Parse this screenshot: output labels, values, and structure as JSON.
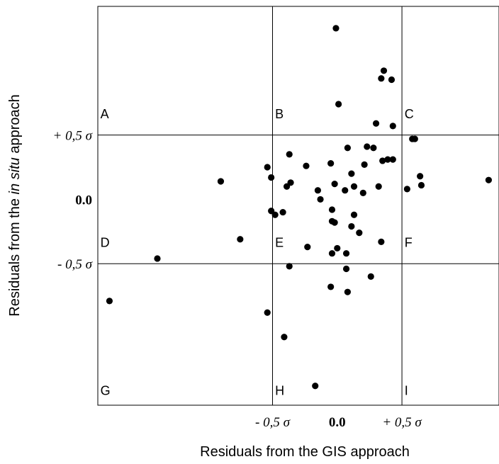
{
  "chart_data": {
    "type": "scatter",
    "xlabel": "Residuals from the GIS approach",
    "ylabel": {
      "prefix": "Residuals from the ",
      "italic": "in situ",
      "suffix": " approach"
    },
    "xlim": [
      -1.85,
      1.25
    ],
    "ylim": [
      -1.6,
      1.5
    ],
    "x_ticks": [
      {
        "value": -0.5,
        "label": "- 0,5 σ",
        "style": "italic"
      },
      {
        "value": 0.0,
        "label": "0.0",
        "style": "bold"
      },
      {
        "value": 0.5,
        "label": "+ 0,5 σ",
        "style": "italic"
      }
    ],
    "y_ticks": [
      {
        "value": 0.5,
        "label": "+ 0,5 σ",
        "style": "italic"
      },
      {
        "value": 0.0,
        "label": "0.0",
        "style": "bold"
      },
      {
        "value": -0.5,
        "label": "- 0,5 σ",
        "style": "italic"
      }
    ],
    "reference_lines": {
      "x": [
        -0.5,
        0.5
      ],
      "y": [
        -0.5,
        0.5
      ]
    },
    "regions": [
      {
        "label": "A",
        "x": -1.83,
        "y": 0.63
      },
      {
        "label": "B",
        "x": -0.48,
        "y": 0.63
      },
      {
        "label": "C",
        "x": 0.52,
        "y": 0.63
      },
      {
        "label": "D",
        "x": -1.83,
        "y": -0.37
      },
      {
        "label": "E",
        "x": -0.48,
        "y": -0.37
      },
      {
        "label": "F",
        "x": 0.52,
        "y": -0.37
      },
      {
        "label": "G",
        "x": -1.83,
        "y": -1.52
      },
      {
        "label": "H",
        "x": -0.48,
        "y": -1.52
      },
      {
        "label": "I",
        "x": 0.52,
        "y": -1.52
      }
    ],
    "grid": false,
    "points": [
      {
        "x": -0.01,
        "y": 1.33
      },
      {
        "x": 0.36,
        "y": 1.0
      },
      {
        "x": 0.34,
        "y": 0.94
      },
      {
        "x": 0.42,
        "y": 0.93
      },
      {
        "x": 0.01,
        "y": 0.74
      },
      {
        "x": 0.3,
        "y": 0.59
      },
      {
        "x": 0.43,
        "y": 0.57
      },
      {
        "x": 0.58,
        "y": 0.47
      },
      {
        "x": 0.6,
        "y": 0.47
      },
      {
        "x": -0.37,
        "y": 0.35
      },
      {
        "x": -0.24,
        "y": 0.26
      },
      {
        "x": -0.05,
        "y": 0.28
      },
      {
        "x": 0.08,
        "y": 0.4
      },
      {
        "x": 0.23,
        "y": 0.41
      },
      {
        "x": 0.28,
        "y": 0.4
      },
      {
        "x": 0.35,
        "y": 0.3
      },
      {
        "x": 0.39,
        "y": 0.31
      },
      {
        "x": 0.43,
        "y": 0.31
      },
      {
        "x": 0.21,
        "y": 0.27
      },
      {
        "x": -0.54,
        "y": 0.25
      },
      {
        "x": -0.51,
        "y": 0.17
      },
      {
        "x": -0.36,
        "y": 0.13
      },
      {
        "x": -0.39,
        "y": 0.1
      },
      {
        "x": 0.11,
        "y": 0.2
      },
      {
        "x": 0.32,
        "y": 0.1
      },
      {
        "x": 0.54,
        "y": 0.08
      },
      {
        "x": 0.64,
        "y": 0.18
      },
      {
        "x": 0.65,
        "y": 0.11
      },
      {
        "x": 1.17,
        "y": 0.15
      },
      {
        "x": -0.9,
        "y": 0.14
      },
      {
        "x": -0.15,
        "y": 0.07
      },
      {
        "x": -0.13,
        "y": 0.0
      },
      {
        "x": -0.02,
        "y": 0.12
      },
      {
        "x": 0.06,
        "y": 0.07
      },
      {
        "x": 0.13,
        "y": 0.1
      },
      {
        "x": 0.2,
        "y": 0.05
      },
      {
        "x": -0.51,
        "y": -0.09
      },
      {
        "x": -0.48,
        "y": -0.12
      },
      {
        "x": -0.42,
        "y": -0.1
      },
      {
        "x": -0.04,
        "y": -0.08
      },
      {
        "x": -0.04,
        "y": -0.17
      },
      {
        "x": -0.02,
        "y": -0.18
      },
      {
        "x": 0.13,
        "y": -0.12
      },
      {
        "x": 0.11,
        "y": -0.21
      },
      {
        "x": 0.17,
        "y": -0.26
      },
      {
        "x": -0.75,
        "y": -0.31
      },
      {
        "x": 0.34,
        "y": -0.33
      },
      {
        "x": -0.23,
        "y": -0.37
      },
      {
        "x": 0.0,
        "y": -0.38
      },
      {
        "x": -0.04,
        "y": -0.42
      },
      {
        "x": 0.07,
        "y": -0.42
      },
      {
        "x": -1.39,
        "y": -0.46
      },
      {
        "x": -0.37,
        "y": -0.52
      },
      {
        "x": 0.07,
        "y": -0.54
      },
      {
        "x": 0.26,
        "y": -0.6
      },
      {
        "x": -0.05,
        "y": -0.68
      },
      {
        "x": 0.08,
        "y": -0.72
      },
      {
        "x": -1.76,
        "y": -0.79
      },
      {
        "x": -0.54,
        "y": -0.88
      },
      {
        "x": -0.41,
        "y": -1.07
      },
      {
        "x": -0.17,
        "y": -1.45
      }
    ]
  }
}
